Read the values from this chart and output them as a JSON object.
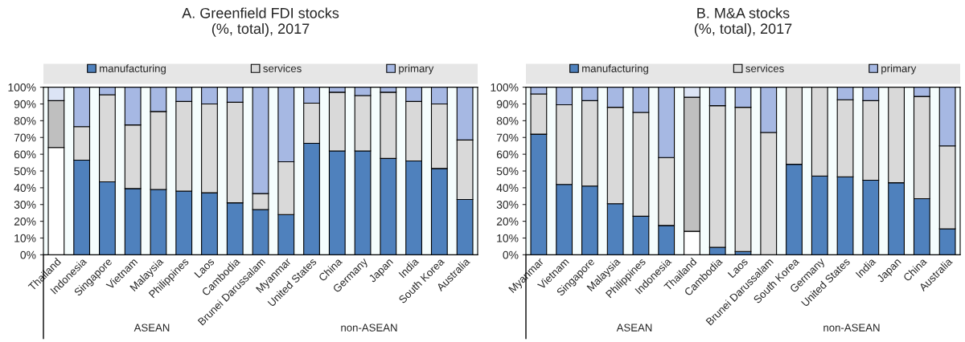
{
  "chart_data": [
    {
      "type": "bar",
      "stacked": true,
      "title": "A. Greenfield FDI stocks\n(%, total), 2017",
      "categories": [
        "Thailand",
        "Indonesia",
        "Singapore",
        "Vietnam",
        "Malaysia",
        "Philippines",
        "Laos",
        "Cambodia",
        "Brunei Darussalam",
        "Myanmar",
        "United States",
        "China",
        "Germany",
        "Japan",
        "India",
        "South Korea",
        "Australia"
      ],
      "series": [
        {
          "name": "manufacturing",
          "color": "#4f81bd",
          "colors": [
            "#ffffff",
            "#4f81bd",
            "#4f81bd",
            "#4f81bd",
            "#4f81bd",
            "#4f81bd",
            "#4f81bd",
            "#4f81bd",
            "#4f81bd",
            "#4f81bd",
            "#4f81bd",
            "#4f81bd",
            "#4f81bd",
            "#4f81bd",
            "#4f81bd",
            "#4f81bd",
            "#4f81bd"
          ],
          "values": [
            64,
            56.5,
            43.5,
            39.5,
            39,
            38,
            37,
            31,
            27,
            24,
            66.5,
            62,
            62,
            57.5,
            56,
            51.5,
            33
          ]
        },
        {
          "name": "services",
          "color": "#d9d9d9",
          "colors": [
            "#bfbfbf",
            "#d9d9d9",
            "#d9d9d9",
            "#d9d9d9",
            "#d9d9d9",
            "#d9d9d9",
            "#d9d9d9",
            "#d9d9d9",
            "#d9d9d9",
            "#d9d9d9",
            "#d9d9d9",
            "#d9d9d9",
            "#d9d9d9",
            "#d9d9d9",
            "#d9d9d9",
            "#d9d9d9",
            "#d9d9d9"
          ],
          "values": [
            28,
            20,
            52,
            38,
            46.5,
            53.5,
            53,
            60,
            9.5,
            31.5,
            24,
            35,
            33,
            39.5,
            35.5,
            38.5,
            35.5
          ]
        },
        {
          "name": "primary",
          "color": "#a6b8e3",
          "colors": [
            "#dce4f5",
            "#a6b8e3",
            "#a6b8e3",
            "#a6b8e3",
            "#a6b8e3",
            "#a6b8e3",
            "#a6b8e3",
            "#a6b8e3",
            "#a6b8e3",
            "#a6b8e3",
            "#a6b8e3",
            "#a6b8e3",
            "#a6b8e3",
            "#a6b8e3",
            "#a6b8e3",
            "#a6b8e3",
            "#a6b8e3"
          ],
          "values": [
            8,
            23.5,
            4.5,
            22.5,
            14.5,
            8.5,
            10,
            9,
            63.5,
            44.5,
            9.5,
            3,
            5,
            3,
            8.5,
            10,
            31.5
          ]
        }
      ],
      "ylim": [
        0,
        100
      ],
      "yticks": [
        {
          "value": 0,
          "label": "0%"
        },
        {
          "value": 10,
          "label": "10%"
        },
        {
          "value": 20,
          "label": "20%"
        },
        {
          "value": 30,
          "label": "30%"
        },
        {
          "value": 40,
          "label": "40%"
        },
        {
          "value": 50,
          "label": "50%"
        },
        {
          "value": 60,
          "label": "60%"
        },
        {
          "value": 70,
          "label": "70%"
        },
        {
          "value": 80,
          "label": "80%"
        },
        {
          "value": 90,
          "label": "90%"
        },
        {
          "value": 100,
          "label": "100%"
        }
      ],
      "legend": "top",
      "annotations": [
        "ASEAN",
        "non-ASEAN"
      ]
    },
    {
      "type": "bar",
      "stacked": true,
      "title": "B. M&A stocks\n(%, total), 2017",
      "categories": [
        "Myanmar",
        "Vietnam",
        "Singapore",
        "Malaysia",
        "Philippines",
        "Indonesia",
        "Thailand",
        "Cambodia",
        "Laos",
        "Brunei Darussalam",
        "South Korea",
        "Germany",
        "United States",
        "India",
        "Japan",
        "China",
        "Australia"
      ],
      "series": [
        {
          "name": "manufacturing",
          "color": "#4f81bd",
          "colors": [
            "#4f81bd",
            "#4f81bd",
            "#4f81bd",
            "#4f81bd",
            "#4f81bd",
            "#4f81bd",
            "#ffffff",
            "#4f81bd",
            "#4f81bd",
            "#4f81bd",
            "#4f81bd",
            "#4f81bd",
            "#4f81bd",
            "#4f81bd",
            "#4f81bd",
            "#4f81bd",
            "#4f81bd"
          ],
          "values": [
            72,
            42,
            41,
            30.5,
            23,
            17.5,
            14,
            4.5,
            2,
            0,
            54,
            47,
            46.5,
            44.5,
            43,
            33.5,
            15.5
          ]
        },
        {
          "name": "services",
          "color": "#d9d9d9",
          "colors": [
            "#d9d9d9",
            "#d9d9d9",
            "#d9d9d9",
            "#d9d9d9",
            "#d9d9d9",
            "#d9d9d9",
            "#bfbfbf",
            "#d9d9d9",
            "#d9d9d9",
            "#d9d9d9",
            "#d9d9d9",
            "#d9d9d9",
            "#d9d9d9",
            "#d9d9d9",
            "#d9d9d9",
            "#d9d9d9",
            "#d9d9d9"
          ],
          "values": [
            24,
            47.5,
            51,
            57.5,
            62,
            40.5,
            80,
            84.5,
            86,
            73,
            46,
            53,
            46,
            47.5,
            57,
            61,
            49.5
          ]
        },
        {
          "name": "primary",
          "color": "#a6b8e3",
          "colors": [
            "#a6b8e3",
            "#a6b8e3",
            "#a6b8e3",
            "#a6b8e3",
            "#a6b8e3",
            "#a6b8e3",
            "#dce4f5",
            "#a6b8e3",
            "#a6b8e3",
            "#a6b8e3",
            "#a6b8e3",
            "#a6b8e3",
            "#a6b8e3",
            "#a6b8e3",
            "#a6b8e3",
            "#a6b8e3",
            "#a6b8e3"
          ],
          "values": [
            4,
            10.5,
            8,
            12,
            15,
            42,
            6,
            11,
            12,
            27,
            0,
            0,
            7.5,
            8,
            0,
            5.5,
            35
          ]
        }
      ],
      "ylim": [
        0,
        100
      ],
      "yticks": [
        {
          "value": 0,
          "label": "0%"
        },
        {
          "value": 10,
          "label": "10%"
        },
        {
          "value": 20,
          "label": "20%"
        },
        {
          "value": 30,
          "label": "30%"
        },
        {
          "value": 40,
          "label": "40%"
        },
        {
          "value": 50,
          "label": "50%"
        },
        {
          "value": 60,
          "label": "60%"
        },
        {
          "value": 70,
          "label": "70%"
        },
        {
          "value": 80,
          "label": "80%"
        },
        {
          "value": 90,
          "label": "90%"
        },
        {
          "value": 100,
          "label": "100%"
        }
      ],
      "legend": "top",
      "annotations": [
        "ASEAN",
        "non-ASEAN"
      ]
    }
  ]
}
